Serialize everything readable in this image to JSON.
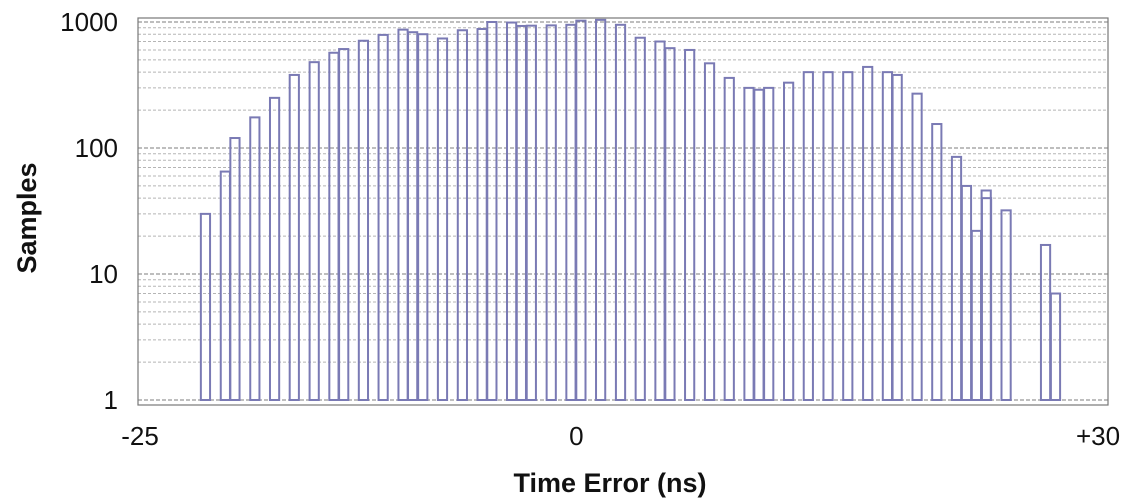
{
  "colors": {
    "bar_stroke": "#7a7ab4",
    "grid_major": "#7d7d7d",
    "grid_minor": "#b5b5b5",
    "frame": "#777777",
    "text": "#111111"
  },
  "chart_data": {
    "type": "bar",
    "xlabel": "Time Error (ns)",
    "ylabel": "Samples",
    "xscale": "linear",
    "yscale": "log",
    "xlim": [
      -25,
      30
    ],
    "ylim": [
      1,
      1000
    ],
    "x_tick_labels": [
      "-25",
      "0",
      "+30"
    ],
    "y_tick_labels": [
      "1",
      "10",
      "100",
      "1000"
    ],
    "grid": true,
    "legend": "none",
    "series": [
      {
        "x": [
          -21.25,
          -20.11,
          -19.56,
          -18.42,
          -17.29,
          -16.16,
          -15.02,
          -13.89,
          -13.33,
          -12.2,
          -11.07,
          -9.93,
          -9.38,
          -8.8,
          -7.67,
          -6.53,
          -5.4,
          -4.84,
          -3.71,
          -3.15,
          -2.58,
          -1.44,
          -0.31,
          0.26,
          1.39,
          2.53,
          3.66,
          4.79,
          5.36,
          6.49,
          7.63,
          8.76,
          9.89,
          10.46,
          11.02,
          12.16,
          13.29,
          14.42,
          15.55,
          16.69,
          17.82,
          18.38,
          19.52,
          20.65,
          21.78,
          22.35,
          23.48,
          24.62
        ],
        "y": [
          30,
          65,
          120,
          175,
          250,
          380,
          480,
          570,
          610,
          710,
          790,
          870,
          830,
          800,
          740,
          860,
          880,
          1000,
          990,
          930,
          935,
          940,
          950,
          1025,
          1040,
          950,
          750,
          700,
          620,
          600,
          470,
          360,
          300,
          290,
          300,
          330,
          400,
          400,
          400,
          440,
          400,
          380,
          270,
          155,
          85,
          50,
          46,
          32
        ]
      },
      {
        "x": [
          22.92,
          23.5,
          26.88,
          27.45
        ],
        "y": [
          22,
          40,
          17,
          7
        ]
      }
    ]
  }
}
